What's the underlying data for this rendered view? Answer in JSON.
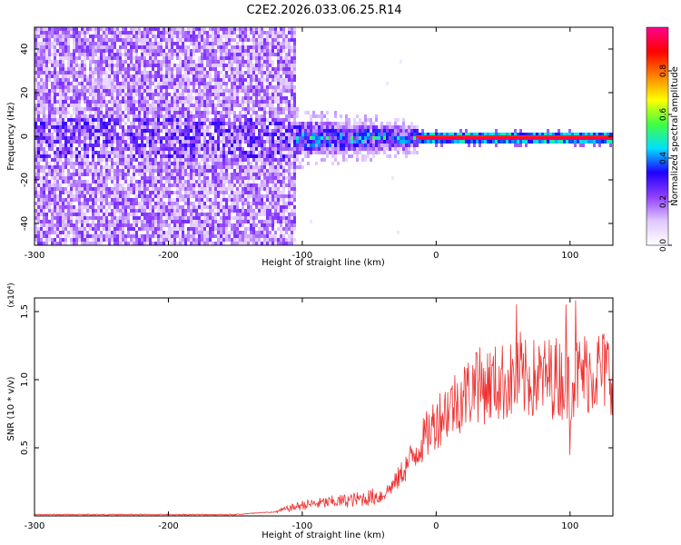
{
  "title": "C2E2.2026.033.06.25.R14",
  "chart_data": [
    {
      "type": "heatmap",
      "xlabel": "Height of straight line (km)",
      "ylabel": "Frequency (Hz)",
      "xlim": [
        -300,
        132
      ],
      "ylim": [
        -50,
        50
      ],
      "x_ticks": [
        -300,
        -200,
        -100,
        0,
        100
      ],
      "y_ticks": [
        -40,
        -20,
        0,
        20,
        40
      ],
      "colorbar": {
        "label": "Normalized spectral amplitude",
        "range": [
          0,
          1
        ],
        "ticks": [
          0.0,
          0.2,
          0.4,
          0.6,
          0.8
        ],
        "colors": [
          "#ffffff",
          "#e0c8ff",
          "#9040ff",
          "#2000ff",
          "#00e0ff",
          "#40ff40",
          "#ffff00",
          "#ff8000",
          "#ff0000",
          "#ff0090"
        ]
      },
      "features": [
        {
          "x_range": [
            -300,
            -105
          ],
          "freq_range": [
            -50,
            50
          ],
          "amplitude": 0.15
        },
        {
          "x_range": [
            -105,
            -15
          ],
          "freq_center": 0,
          "freq_halfwidth": 8,
          "amplitude": 0.35
        },
        {
          "x_range": [
            -15,
            132
          ],
          "freq_center": 0,
          "freq_halfwidth": 3,
          "amplitude": 0.95
        }
      ]
    },
    {
      "type": "line",
      "xlabel": "Height of straight line (km)",
      "ylabel": "SNR (10 * v/v)",
      "yscale_label": "(x10⁴)",
      "xlim": [
        -300,
        132
      ],
      "ylim": [
        0,
        1.6
      ],
      "x_ticks": [
        -300,
        -200,
        -100,
        0,
        100
      ],
      "y_ticks": [
        0.5,
        1.0,
        1.5
      ],
      "color": "#ee3030",
      "envelope": {
        "x": [
          -300,
          -200,
          -150,
          -120,
          -100,
          -80,
          -60,
          -40,
          -30,
          -20,
          -10,
          0,
          10,
          20,
          30,
          50,
          70,
          90,
          100,
          110,
          120,
          132
        ],
        "y": [
          0.01,
          0.01,
          0.01,
          0.03,
          0.08,
          0.1,
          0.12,
          0.15,
          0.25,
          0.4,
          0.55,
          0.7,
          0.8,
          0.88,
          0.95,
          0.98,
          1.0,
          1.02,
          0.98,
          1.05,
          1.07,
          1.06
        ]
      },
      "spikes": [
        {
          "x": 30,
          "y": 1.2
        },
        {
          "x": 60,
          "y": 1.55
        },
        {
          "x": 63,
          "y": 1.35
        },
        {
          "x": 97,
          "y": 1.55
        },
        {
          "x": 104,
          "y": 1.58
        },
        {
          "x": 100,
          "y": 0.45
        }
      ]
    }
  ]
}
